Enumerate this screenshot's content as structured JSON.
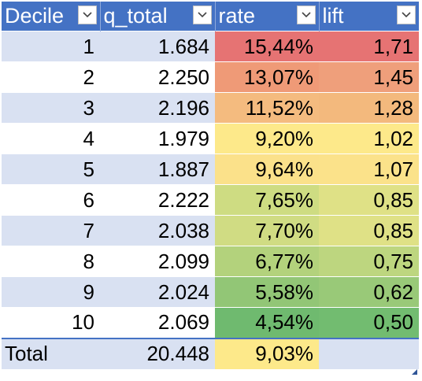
{
  "headers": [
    {
      "label": "Decile"
    },
    {
      "label": "q_total"
    },
    {
      "label": "rate"
    },
    {
      "label": "lift"
    }
  ],
  "rows": [
    {
      "decile": "1",
      "q_total": "1.684",
      "rate": "15,44%",
      "lift": "1,71",
      "rate_color": "#e67373",
      "lift_color": "#e67373"
    },
    {
      "decile": "2",
      "q_total": "2.250",
      "rate": "13,07%",
      "lift": "1,45",
      "rate_color": "#ef9a77",
      "lift_color": "#ef9f7b"
    },
    {
      "decile": "3",
      "q_total": "2.196",
      "rate": "11,52%",
      "lift": "1,28",
      "rate_color": "#f4bb7f",
      "lift_color": "#f3b97d"
    },
    {
      "decile": "4",
      "q_total": "1.979",
      "rate": "9,20%",
      "lift": "1,02",
      "rate_color": "#fde98a",
      "lift_color": "#fde98a"
    },
    {
      "decile": "5",
      "q_total": "1.887",
      "rate": "9,64%",
      "lift": "1,07",
      "rate_color": "#fbe18a",
      "lift_color": "#fbe28a"
    },
    {
      "decile": "6",
      "q_total": "2.222",
      "rate": "7,65%",
      "lift": "0,85",
      "rate_color": "#cedc82",
      "lift_color": "#dfe186"
    },
    {
      "decile": "7",
      "q_total": "2.038",
      "rate": "7,70%",
      "lift": "0,85",
      "rate_color": "#d0dc83",
      "lift_color": "#dfe186"
    },
    {
      "decile": "8",
      "q_total": "2.099",
      "rate": "6,77%",
      "lift": "0,75",
      "rate_color": "#b3d27c",
      "lift_color": "#bdd67f"
    },
    {
      "decile": "9",
      "q_total": "2.024",
      "rate": "5,58%",
      "lift": "0,62",
      "rate_color": "#92c676",
      "lift_color": "#99c978"
    },
    {
      "decile": "10",
      "q_total": "2.069",
      "rate": "4,54%",
      "lift": "0,50",
      "rate_color": "#6fba6f",
      "lift_color": "#72bc70"
    }
  ],
  "total": {
    "label": "Total",
    "q_total": "20.448",
    "rate": "9,03%",
    "lift": "",
    "rate_color": "#fde98a"
  },
  "colors": {
    "header_bg": "#4472c4",
    "band_bg": "#d9e1f2"
  },
  "icons": {
    "filter": "chevron-down-icon"
  }
}
